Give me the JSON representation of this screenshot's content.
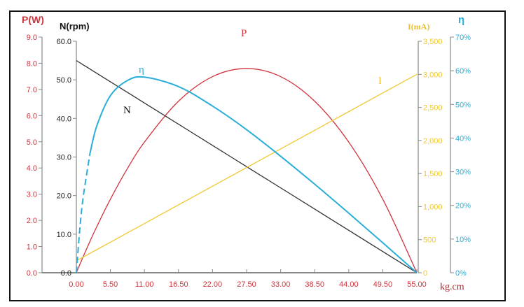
{
  "chart_data": {
    "type": "line",
    "x": [
      0,
      0.55,
      1.1,
      2.2,
      3.3,
      5.5,
      8.25,
      11,
      16.5,
      22,
      27.5,
      33,
      38.5,
      44,
      49.5,
      55
    ],
    "x_ticks": [
      "0.00",
      "5.50",
      "11.00",
      "16.50",
      "22.00",
      "27.50",
      "33.00",
      "38.50",
      "44.00",
      "49.50",
      "55.00"
    ],
    "xlabel": "kg.cm",
    "xlim": [
      0,
      55
    ],
    "grid": false,
    "axes": {
      "P": {
        "label": "P(W)",
        "ylim": [
          0,
          9
        ],
        "ticks": [
          "0.0",
          "1.0",
          "2.0",
          "3.0",
          "4.0",
          "5.0",
          "6.0",
          "7.0",
          "8.0",
          "9.0"
        ],
        "color": "#d0343e"
      },
      "N": {
        "label": "N(rpm)",
        "ylim": [
          0,
          60
        ],
        "ticks": [
          "0.0",
          "10.0",
          "20.0",
          "30.0",
          "40.0",
          "50.0",
          "60.0"
        ],
        "color": "#222222"
      },
      "I": {
        "label": "I(mA)",
        "ylim": [
          0,
          3500
        ],
        "ticks": [
          "0",
          "500",
          "1,000",
          "1,500",
          "2,000",
          "2,500",
          "3,000",
          "3,500"
        ],
        "color": "#efc832"
      },
      "eta": {
        "label": "η",
        "ylim": [
          0,
          70
        ],
        "ticks": [
          "0%",
          "10%",
          "20%",
          "30%",
          "40%",
          "50%",
          "60%",
          "70%"
        ],
        "color": "#2aaed8"
      }
    },
    "series": [
      {
        "name": "N",
        "axis": "N",
        "color": "#333333",
        "values": [
          55,
          54.45,
          53.9,
          52.8,
          51.7,
          49.5,
          46.75,
          44,
          38.5,
          33,
          27.5,
          22,
          16.5,
          11,
          5.5,
          0
        ]
      },
      {
        "name": "P",
        "axis": "P",
        "color": "#d0343e",
        "values": [
          0,
          0.31,
          0.61,
          1.2,
          1.76,
          2.81,
          3.98,
          4.99,
          6.55,
          7.49,
          7.8,
          7.49,
          6.55,
          4.99,
          2.81,
          0
        ]
      },
      {
        "name": "I",
        "axis": "I",
        "color": "#efc832",
        "values": [
          180,
          208,
          236,
          293,
          349,
          462,
          603,
          744,
          1026,
          1308,
          1590,
          1872,
          2154,
          2436,
          2718,
          3000
        ]
      },
      {
        "name": "η",
        "axis": "eta",
        "color": "#2aaed8",
        "dashed_until": 2.2,
        "values": [
          0,
          12.8,
          22.4,
          35.4,
          43.6,
          52.6,
          57.1,
          58.1,
          55.3,
          49.5,
          42.5,
          34.6,
          26.3,
          17.7,
          8.9,
          0
        ]
      }
    ]
  }
}
